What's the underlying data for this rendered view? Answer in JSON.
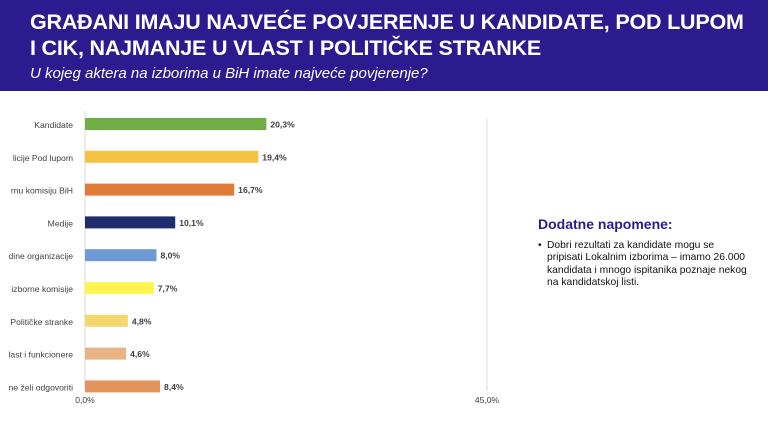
{
  "header": {
    "title": "GRAĐANI IMAJU NAJVEĆE POVJERENJE U KANDIDATE, POD LUPOM I CIK, NAJMANJE U VLAST I POLITIČKE STRANKE",
    "subtitle": "U kojeg aktera na izborima u BiH imate najveće povjerenje?"
  },
  "notes": {
    "title": "Dodatne napomene:",
    "items": [
      "Dobri rezultati za kandidate mogu se pripisati Lokalnim izborima – imamo 26.000 kandidata i mnogo ispitanika poznaje nekog na kandidatskoj listi."
    ]
  },
  "chart_data": {
    "type": "bar",
    "orientation": "horizontal",
    "categories": [
      "Kandidate",
      "licije Pod lupom",
      "rnu komisiju BiH",
      "Medije",
      "dine organizacije",
      "izborne komisije",
      "Političke stranke",
      "last i funkcionere",
      "ne želi odgovoriti"
    ],
    "values": [
      20.3,
      19.4,
      16.7,
      10.1,
      8.0,
      7.7,
      4.8,
      4.6,
      8.4
    ],
    "data_labels": [
      "20,3%",
      "19,4%",
      "16,7%",
      "10,1%",
      "8,0%",
      "7,7%",
      "4,8%",
      "4,6%",
      "8,4%"
    ],
    "colors": [
      "#70ad47",
      "#f5c342",
      "#e07b39",
      "#1f2d6b",
      "#6b9bd2",
      "#fff44f",
      "#f5d76e",
      "#e8b483",
      "#e3945d"
    ],
    "xlim": [
      0,
      45
    ],
    "tick_labels": [
      "0,0%",
      "45,0%"
    ],
    "grid": false
  }
}
